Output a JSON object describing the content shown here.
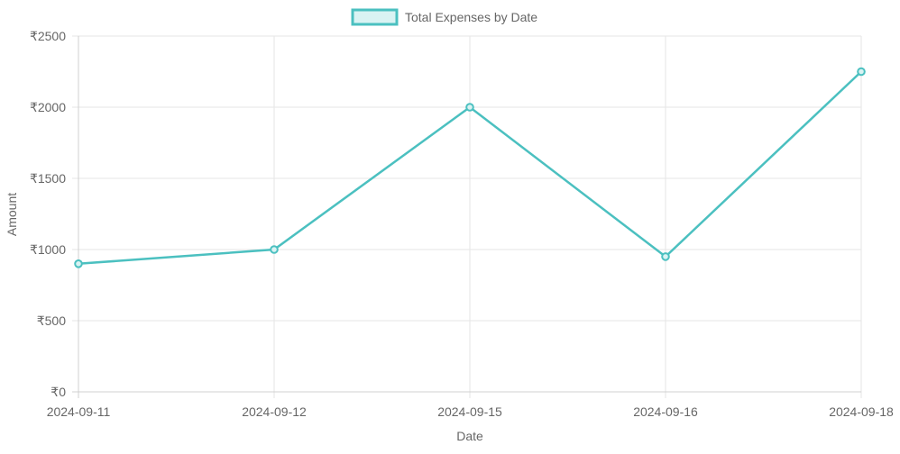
{
  "chart_data": {
    "type": "line",
    "x": [
      "2024-09-11",
      "2024-09-12",
      "2024-09-15",
      "2024-09-16",
      "2024-09-18"
    ],
    "series": [
      {
        "name": "Total Expenses by Date",
        "values": [
          900,
          1000,
          2000,
          950,
          2250
        ],
        "color": "#4bc0c0",
        "fill": "#d9f3f3"
      }
    ],
    "xlabel": "Date",
    "ylabel": "Amount",
    "ylim": [
      0,
      2500
    ],
    "yticks": [
      "₹0",
      "₹500",
      "₹1000",
      "₹1500",
      "₹2000",
      "₹2500"
    ],
    "grid": true,
    "legend": "top-center"
  }
}
